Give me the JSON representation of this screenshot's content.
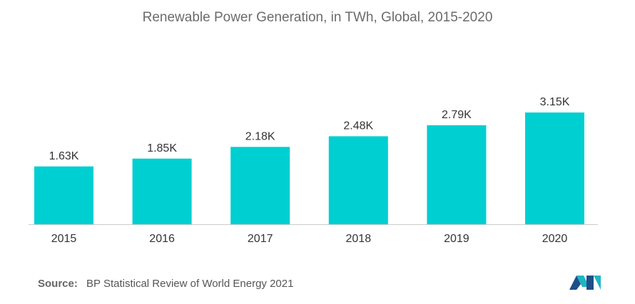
{
  "chart_data": {
    "type": "bar",
    "title": "Renewable Power Generation, in TWh, Global, 2015-2020",
    "categories": [
      "2015",
      "2016",
      "2017",
      "2018",
      "2019",
      "2020"
    ],
    "values": [
      1630,
      1850,
      2180,
      2480,
      2790,
      3150
    ],
    "data_labels": [
      "1.63K",
      "1.85K",
      "2.18K",
      "2.48K",
      "2.79K",
      "3.15K"
    ],
    "xlabel": "",
    "ylabel": "",
    "ylim": [
      0,
      3150
    ],
    "grid": false,
    "bar_color": "#00cfd1",
    "axis_color": "#cccccc"
  },
  "source": {
    "label": "Source:",
    "text": "BP Statistical Review of World Energy 2021"
  },
  "logo": {
    "icon": "mordor-intelligence-logo-icon",
    "colors": [
      "#1f4f8a",
      "#1fb6c1"
    ]
  }
}
